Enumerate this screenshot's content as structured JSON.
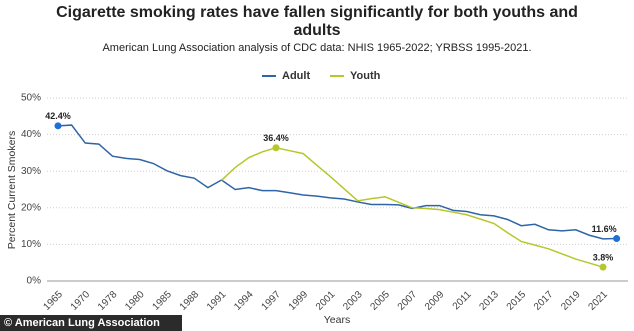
{
  "chart_data": {
    "type": "line",
    "title": "Cigarette smoking rates have fallen significantly for both youths and adults",
    "subtitle": "American Lung Association analysis of CDC data: NHIS 1965-2022; YRBSS 1995-2021.",
    "y_label": "Percent Current Smokers",
    "x_label": "Years",
    "credit": "© American Lung Association",
    "categories": [
      "1965",
      null,
      "1970",
      null,
      "1978",
      null,
      "1980",
      null,
      "1985",
      null,
      "1988",
      null,
      "1991",
      null,
      "1994",
      null,
      "1997",
      null,
      "1999",
      null,
      "2001",
      null,
      "2003",
      null,
      "2005",
      null,
      "2007",
      null,
      "2009",
      null,
      "2011",
      null,
      "2013",
      null,
      "2015",
      null,
      "2017",
      null,
      "2019",
      null,
      "2021",
      null
    ],
    "series": [
      {
        "name": "Adult",
        "color": "#2f64a6",
        "values": [
          42.4,
          42.6,
          37.7,
          37.4,
          34.1,
          33.5,
          33.2,
          32.1,
          30.1,
          28.8,
          28.1,
          25.5,
          27.6,
          25.0,
          25.5,
          24.7,
          24.7,
          24.1,
          23.5,
          23.2,
          22.7,
          22.4,
          21.6,
          20.9,
          20.9,
          20.8,
          19.8,
          20.6,
          20.6,
          19.3,
          19.0,
          18.1,
          17.8,
          16.8,
          15.1,
          15.5,
          14.0,
          13.7,
          14.0,
          12.5,
          11.5,
          11.6
        ],
        "value_labels": [
          "42.4%",
          null,
          null,
          null,
          null,
          null,
          null,
          null,
          null,
          null,
          null,
          null,
          null,
          null,
          null,
          null,
          null,
          null,
          null,
          null,
          null,
          null,
          null,
          null,
          null,
          null,
          null,
          null,
          null,
          null,
          null,
          null,
          null,
          null,
          null,
          null,
          null,
          null,
          null,
          null,
          null,
          "11.6%"
        ]
      },
      {
        "name": "Youth",
        "color": "#b6c72c",
        "values": [
          null,
          null,
          null,
          null,
          null,
          null,
          null,
          null,
          null,
          null,
          null,
          null,
          27.5,
          31.0,
          33.7,
          35.3,
          36.4,
          35.6,
          34.8,
          31.6,
          28.5,
          25.2,
          21.9,
          22.5,
          23.0,
          21.5,
          20.0,
          19.8,
          19.5,
          18.8,
          18.1,
          16.9,
          15.7,
          13.2,
          10.8,
          9.8,
          8.8,
          7.4,
          6.0,
          4.9,
          3.8,
          null
        ],
        "value_labels": [
          null,
          null,
          null,
          null,
          null,
          null,
          null,
          null,
          null,
          null,
          null,
          null,
          null,
          null,
          null,
          null,
          "36.4%",
          null,
          null,
          null,
          null,
          null,
          null,
          null,
          null,
          null,
          null,
          null,
          null,
          null,
          null,
          null,
          null,
          null,
          null,
          null,
          null,
          null,
          null,
          null,
          "3.8%",
          null
        ]
      }
    ],
    "ylim": [
      0,
      50
    ],
    "yticks": [
      {
        "value": 0,
        "label": "0%"
      },
      {
        "value": 10,
        "label": "10%"
      },
      {
        "value": 20,
        "label": "20%"
      },
      {
        "value": 30,
        "label": "30%"
      },
      {
        "value": 40,
        "label": "40%"
      },
      {
        "value": 50,
        "label": "50%"
      }
    ],
    "grid": true,
    "legend": "top"
  }
}
